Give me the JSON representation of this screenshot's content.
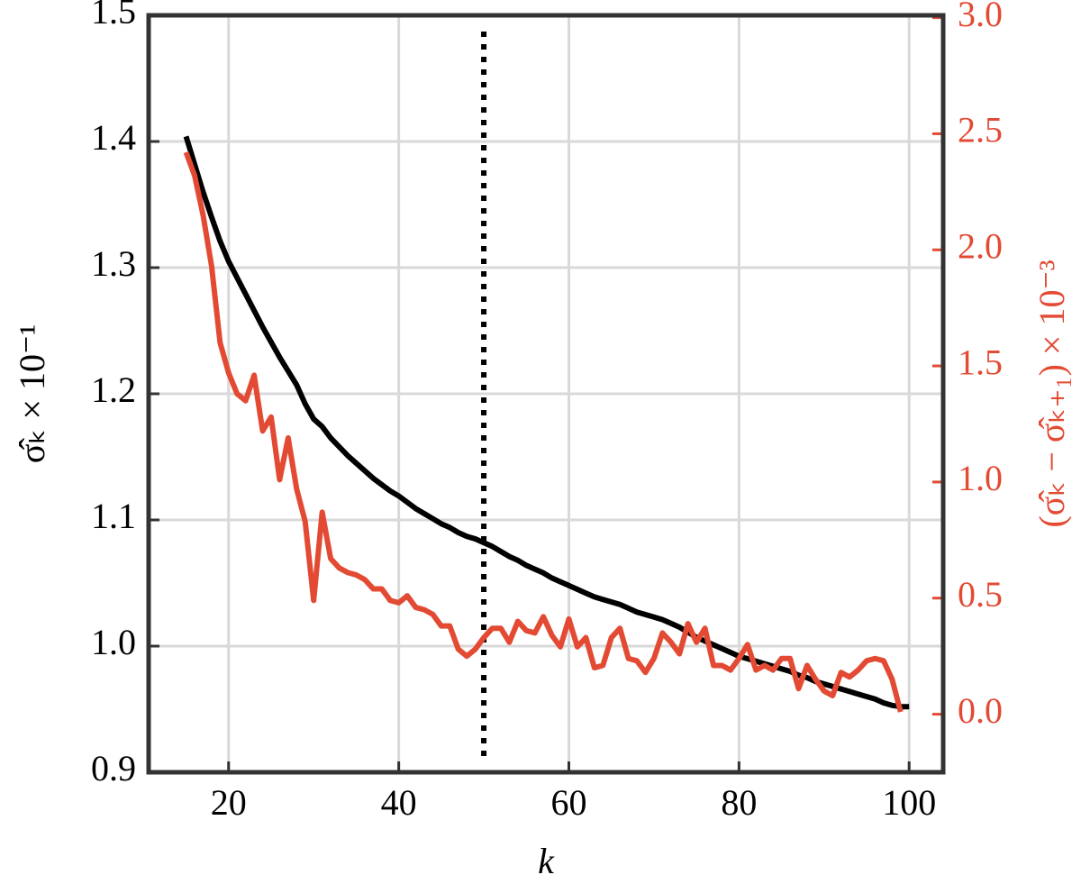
{
  "chart_data": {
    "type": "line",
    "x_label": "k",
    "y_label": "σ̂ₖ × 10⁻¹",
    "y2_label": "(σ̂ₖ − σ̂ₖ₊₁) × 10⁻³",
    "x": [
      15,
      16,
      17,
      18,
      19,
      20,
      21,
      22,
      23,
      24,
      25,
      26,
      27,
      28,
      29,
      30,
      31,
      32,
      33,
      34,
      35,
      36,
      37,
      38,
      39,
      40,
      41,
      42,
      43,
      44,
      45,
      46,
      47,
      48,
      49,
      50,
      51,
      52,
      53,
      54,
      55,
      56,
      57,
      58,
      59,
      60,
      61,
      62,
      63,
      64,
      65,
      66,
      67,
      68,
      69,
      70,
      71,
      72,
      73,
      74,
      75,
      76,
      77,
      78,
      79,
      80,
      81,
      82,
      83,
      84,
      85,
      86,
      87,
      88,
      89,
      90,
      91,
      92,
      93,
      94,
      95,
      96,
      97,
      98,
      99,
      100
    ],
    "series": [
      {
        "color": "#000000",
        "values": [
          1.404,
          1.382,
          1.36,
          1.34,
          1.321,
          1.305,
          1.292,
          1.279,
          1.266,
          1.253,
          1.241,
          1.229,
          1.218,
          1.207,
          1.192,
          1.18,
          1.174,
          1.165,
          1.158,
          1.151,
          1.145,
          1.139,
          1.133,
          1.128,
          1.123,
          1.119,
          1.114,
          1.109,
          1.105,
          1.101,
          1.097,
          1.094,
          1.09,
          1.087,
          1.085,
          1.082,
          1.079,
          1.075,
          1.071,
          1.068,
          1.064,
          1.061,
          1.058,
          1.054,
          1.051,
          1.048,
          1.045,
          1.042,
          1.039,
          1.037,
          1.035,
          1.033,
          1.03,
          1.027,
          1.025,
          1.023,
          1.021,
          1.018,
          1.015,
          1.011,
          1.007,
          1.004,
          1.001,
          0.998,
          0.995,
          0.992,
          0.99,
          0.988,
          0.986,
          0.984,
          0.982,
          0.98,
          0.977,
          0.975,
          0.972,
          0.97,
          0.968,
          0.966,
          0.964,
          0.962,
          0.96,
          0.958,
          0.955,
          0.953,
          0.952,
          0.952
        ]
      },
      {
        "color": "#e34a33",
        "axis": "y2",
        "values": [
          2.42,
          2.32,
          2.15,
          1.93,
          1.6,
          1.47,
          1.38,
          1.35,
          1.46,
          1.22,
          1.28,
          1.01,
          1.19,
          0.97,
          0.83,
          0.49,
          0.87,
          0.67,
          0.63,
          0.61,
          0.6,
          0.58,
          0.54,
          0.54,
          0.49,
          0.48,
          0.51,
          0.46,
          0.45,
          0.43,
          0.38,
          0.38,
          0.28,
          0.25,
          0.28,
          0.33,
          0.37,
          0.37,
          0.31,
          0.4,
          0.36,
          0.35,
          0.42,
          0.34,
          0.29,
          0.41,
          0.29,
          0.33,
          0.2,
          0.21,
          0.33,
          0.37,
          0.24,
          0.23,
          0.18,
          0.24,
          0.35,
          0.31,
          0.26,
          0.39,
          0.31,
          0.37,
          0.21,
          0.21,
          0.19,
          0.24,
          0.3,
          0.19,
          0.21,
          0.19,
          0.24,
          0.24,
          0.11,
          0.21,
          0.15,
          0.1,
          0.08,
          0.18,
          0.16,
          0.19,
          0.23,
          0.24,
          0.23,
          0.15,
          0.01,
          null
        ]
      }
    ],
    "vline": 50,
    "xlim": [
      10.6,
      104
    ],
    "xticks": [
      20,
      40,
      60,
      80,
      100
    ],
    "ylim": [
      0.9,
      1.5
    ],
    "yticks": [
      0.9,
      {
        "value": 1,
        "label": "1.0"
      },
      1.1,
      1.2,
      1.3,
      1.4,
      1.5
    ],
    "y2lim": [
      -0.25,
      3.01
    ],
    "y2ticks": [
      {
        "value": 0,
        "label": "0.0"
      },
      0.5,
      {
        "value": 1,
        "label": "1.0"
      },
      1.5,
      {
        "value": 2,
        "label": "2.0"
      },
      2.5,
      {
        "value": 3,
        "label": "3.0"
      }
    ],
    "y2_color": "#e34a33",
    "grid": true
  }
}
